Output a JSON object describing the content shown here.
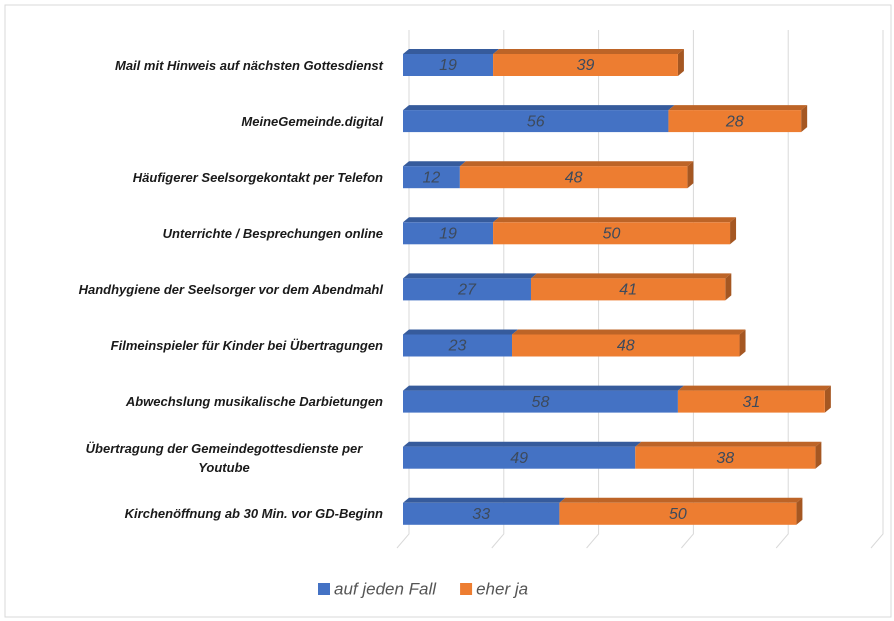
{
  "chart_data": {
    "type": "stacked_bar_horizontal",
    "categories": [
      "Mail mit Hinweis auf nächsten  Gottesdienst",
      "MeineGemeinde.digital",
      "Häufigerer Seelsorgekontakt per Telefon",
      "Unterrichte / Besprechungen online",
      "Handhygiene der Seelsorger vor dem Abendmahl",
      "Filmeinspieler für Kinder bei Übertragungen",
      "Abwechslung musikalische Darbietungen",
      "Übertragung der Gemeindegottesdienste per Youtube",
      "Kirchenöffnung ab 30 Min. vor GD-Beginn"
    ],
    "series": [
      {
        "name": "auf jeden Fall",
        "color": "#4472c4",
        "values": [
          19,
          56,
          12,
          19,
          27,
          23,
          58,
          49,
          33
        ]
      },
      {
        "name": "eher ja",
        "color": "#ed7d31",
        "values": [
          39,
          28,
          48,
          50,
          41,
          48,
          31,
          38,
          50
        ]
      }
    ],
    "xlim": [
      0,
      100
    ],
    "xticks": [
      0,
      20,
      40,
      60,
      80,
      100
    ],
    "grid": true,
    "legend": "bottom"
  }
}
